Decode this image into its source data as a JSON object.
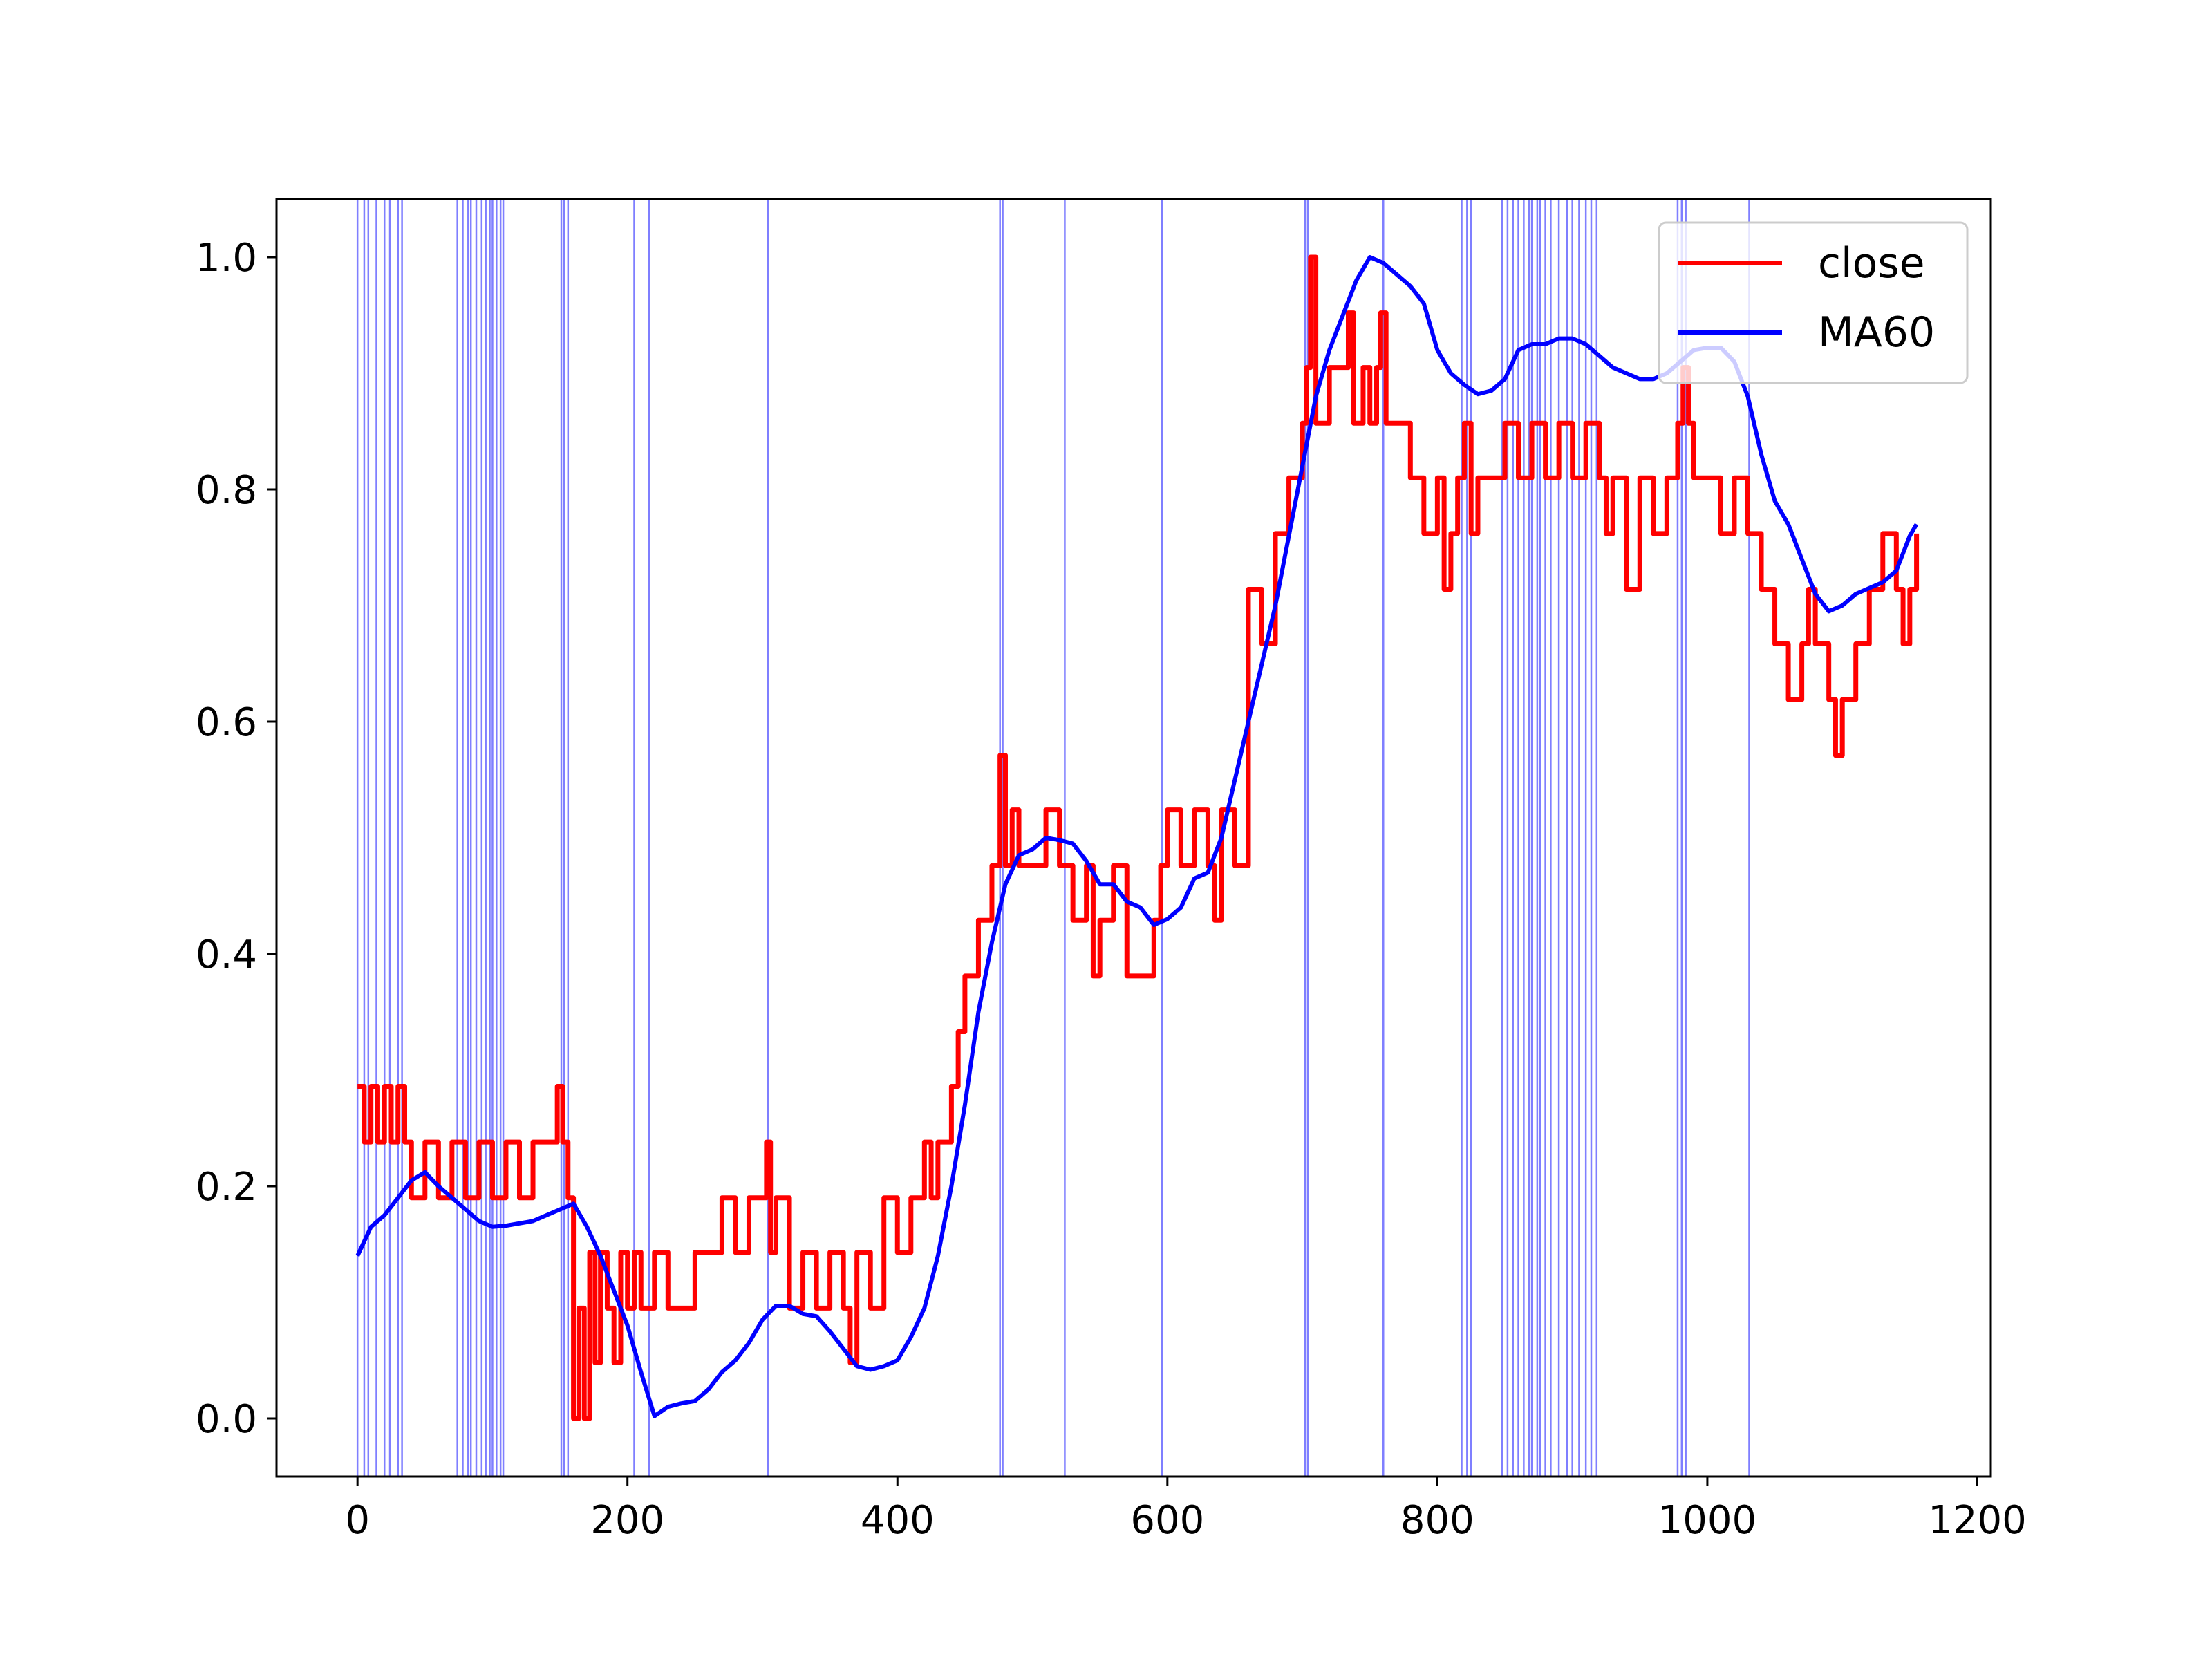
{
  "chart_data": {
    "type": "line",
    "title": "",
    "xlabel": "",
    "ylabel": "",
    "xlim": [
      -60,
      1210
    ],
    "ylim": [
      -0.05,
      1.05
    ],
    "xticks": [
      0,
      200,
      400,
      600,
      800,
      1000,
      1200
    ],
    "yticks": [
      0.0,
      0.2,
      0.4,
      0.6,
      0.8,
      1.0
    ],
    "xtick_labels": [
      "0",
      "200",
      "400",
      "600",
      "800",
      "1000",
      "1200"
    ],
    "ytick_labels": [
      "0.0",
      "0.2",
      "0.4",
      "0.6",
      "0.8",
      "1.0"
    ],
    "grid": false,
    "legend": {
      "position": "upper right"
    },
    "series": [
      {
        "name": "close",
        "color": "#ff0000",
        "x": [
          0,
          5,
          10,
          15,
          20,
          25,
          30,
          35,
          40,
          50,
          60,
          70,
          80,
          90,
          100,
          110,
          120,
          130,
          140,
          148,
          152,
          156,
          160,
          164,
          168,
          172,
          176,
          180,
          185,
          190,
          195,
          200,
          205,
          210,
          220,
          230,
          240,
          250,
          260,
          270,
          280,
          290,
          300,
          303,
          306,
          310,
          320,
          330,
          340,
          350,
          360,
          365,
          370,
          380,
          390,
          400,
          410,
          420,
          425,
          430,
          440,
          445,
          450,
          460,
          470,
          476,
          480,
          485,
          490,
          500,
          510,
          520,
          530,
          540,
          545,
          550,
          560,
          570,
          580,
          590,
          595,
          600,
          610,
          620,
          630,
          635,
          640,
          645,
          650,
          660,
          670,
          680,
          690,
          700,
          703,
          706,
          710,
          720,
          730,
          734,
          738,
          745,
          750,
          755,
          758,
          762,
          766,
          770,
          780,
          790,
          800,
          805,
          810,
          815,
          820,
          825,
          830,
          840,
          850,
          860,
          870,
          880,
          890,
          900,
          910,
          920,
          925,
          930,
          940,
          950,
          960,
          970,
          978,
          982,
          986,
          990,
          1000,
          1010,
          1020,
          1030,
          1040,
          1050,
          1060,
          1070,
          1075,
          1080,
          1090,
          1095,
          1100,
          1110,
          1120,
          1130,
          1140,
          1145,
          1150,
          1155
        ],
        "y": [
          0.286,
          0.238,
          0.286,
          0.238,
          0.286,
          0.238,
          0.286,
          0.238,
          0.19,
          0.238,
          0.19,
          0.238,
          0.19,
          0.238,
          0.19,
          0.238,
          0.19,
          0.238,
          0.238,
          0.286,
          0.238,
          0.19,
          0.0,
          0.095,
          0.0,
          0.143,
          0.048,
          0.143,
          0.095,
          0.048,
          0.143,
          0.095,
          0.143,
          0.095,
          0.143,
          0.095,
          0.095,
          0.143,
          0.143,
          0.19,
          0.143,
          0.19,
          0.19,
          0.238,
          0.143,
          0.19,
          0.095,
          0.143,
          0.095,
          0.143,
          0.095,
          0.048,
          0.143,
          0.095,
          0.19,
          0.143,
          0.19,
          0.238,
          0.19,
          0.238,
          0.286,
          0.333,
          0.381,
          0.429,
          0.476,
          0.571,
          0.476,
          0.524,
          0.476,
          0.476,
          0.524,
          0.476,
          0.429,
          0.476,
          0.381,
          0.429,
          0.476,
          0.381,
          0.381,
          0.429,
          0.476,
          0.524,
          0.476,
          0.524,
          0.476,
          0.429,
          0.524,
          0.524,
          0.476,
          0.714,
          0.667,
          0.762,
          0.81,
          0.857,
          0.905,
          1.0,
          0.857,
          0.905,
          0.905,
          0.952,
          0.857,
          0.905,
          0.857,
          0.905,
          0.952,
          0.857,
          0.857,
          0.857,
          0.81,
          0.762,
          0.81,
          0.714,
          0.762,
          0.81,
          0.857,
          0.762,
          0.81,
          0.81,
          0.857,
          0.81,
          0.857,
          0.81,
          0.857,
          0.81,
          0.857,
          0.81,
          0.762,
          0.81,
          0.714,
          0.81,
          0.762,
          0.81,
          0.857,
          0.905,
          0.857,
          0.81,
          0.81,
          0.762,
          0.81,
          0.762,
          0.714,
          0.667,
          0.619,
          0.667,
          0.714,
          0.667,
          0.619,
          0.571,
          0.619,
          0.667,
          0.714,
          0.762,
          0.714,
          0.667,
          0.714,
          0.762
        ],
        "step": true
      },
      {
        "name": "MA60",
        "color": "#0000ff",
        "x": [
          0,
          10,
          20,
          30,
          40,
          50,
          60,
          70,
          80,
          90,
          100,
          110,
          120,
          130,
          140,
          150,
          160,
          170,
          180,
          190,
          200,
          210,
          220,
          230,
          240,
          250,
          260,
          270,
          280,
          290,
          300,
          310,
          320,
          330,
          340,
          350,
          360,
          370,
          380,
          390,
          400,
          410,
          420,
          430,
          440,
          450,
          460,
          470,
          480,
          490,
          500,
          510,
          520,
          530,
          540,
          550,
          560,
          570,
          580,
          590,
          600,
          610,
          620,
          630,
          640,
          650,
          660,
          670,
          680,
          690,
          700,
          710,
          720,
          730,
          740,
          750,
          760,
          770,
          780,
          790,
          800,
          810,
          820,
          830,
          840,
          850,
          860,
          870,
          880,
          890,
          900,
          910,
          920,
          930,
          940,
          950,
          960,
          970,
          980,
          990,
          1000,
          1010,
          1020,
          1030,
          1040,
          1050,
          1060,
          1070,
          1080,
          1090,
          1100,
          1110,
          1120,
          1130,
          1140,
          1150,
          1155
        ],
        "y": [
          0.14,
          0.165,
          0.175,
          0.19,
          0.205,
          0.212,
          0.2,
          0.19,
          0.18,
          0.17,
          0.165,
          0.166,
          0.168,
          0.17,
          0.175,
          0.18,
          0.185,
          0.165,
          0.14,
          0.11,
          0.08,
          0.04,
          0.002,
          0.01,
          0.013,
          0.015,
          0.025,
          0.04,
          0.05,
          0.065,
          0.085,
          0.097,
          0.097,
          0.09,
          0.088,
          0.075,
          0.06,
          0.045,
          0.042,
          0.045,
          0.05,
          0.07,
          0.095,
          0.14,
          0.2,
          0.27,
          0.35,
          0.41,
          0.46,
          0.485,
          0.49,
          0.5,
          0.498,
          0.495,
          0.48,
          0.46,
          0.46,
          0.445,
          0.44,
          0.425,
          0.43,
          0.44,
          0.465,
          0.47,
          0.5,
          0.55,
          0.6,
          0.65,
          0.7,
          0.76,
          0.82,
          0.88,
          0.92,
          0.95,
          0.98,
          1.0,
          0.995,
          0.985,
          0.975,
          0.96,
          0.92,
          0.9,
          0.89,
          0.882,
          0.885,
          0.895,
          0.92,
          0.925,
          0.925,
          0.93,
          0.93,
          0.925,
          0.915,
          0.905,
          0.9,
          0.895,
          0.895,
          0.9,
          0.91,
          0.92,
          0.922,
          0.922,
          0.91,
          0.88,
          0.83,
          0.79,
          0.77,
          0.74,
          0.71,
          0.695,
          0.7,
          0.71,
          0.715,
          0.72,
          0.73,
          0.76,
          0.77
        ]
      }
    ],
    "vlines": {
      "color": "#0000ff",
      "x": [
        0,
        5,
        8,
        14,
        20,
        24,
        30,
        33,
        74,
        78,
        82,
        84,
        88,
        92,
        95,
        98,
        100,
        103,
        106,
        108,
        151,
        153,
        156,
        205,
        216,
        304,
        476,
        478,
        524,
        596,
        702,
        704,
        760,
        818,
        822,
        825,
        848,
        852,
        856,
        860,
        864,
        868,
        870,
        874,
        876,
        880,
        884,
        890,
        896,
        900,
        905,
        910,
        914,
        918,
        978,
        981,
        984,
        1031
      ]
    }
  }
}
